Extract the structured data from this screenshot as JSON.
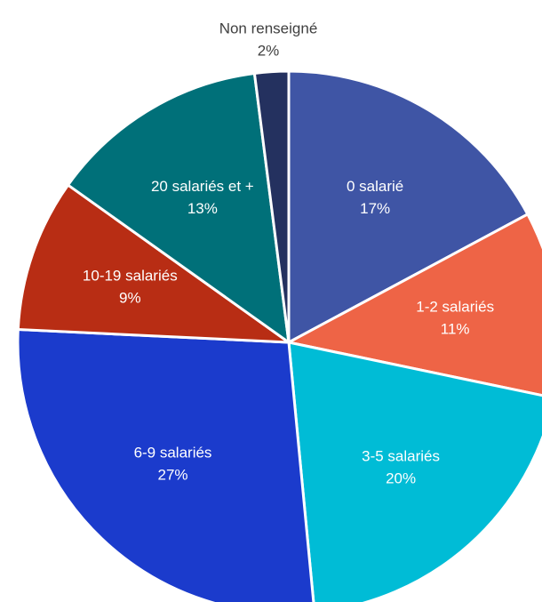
{
  "chart_data": {
    "type": "pie",
    "categories": [
      "0 salarié",
      "1-2 salariés",
      "3-5 salariés",
      "6-9 salariés",
      "10-19 salariés",
      "20 salariés et +",
      "Non renseigné"
    ],
    "values": [
      17,
      11,
      20,
      27,
      9,
      13,
      2
    ],
    "value_labels": [
      "17%",
      "11%",
      "20%",
      "27%",
      "9%",
      "13%",
      "2%"
    ],
    "colors": [
      "#3f55a5",
      "#ee6446",
      "#00bcd6",
      "#1b3bcc",
      "#b82d14",
      "#007079",
      "#24315f"
    ]
  }
}
